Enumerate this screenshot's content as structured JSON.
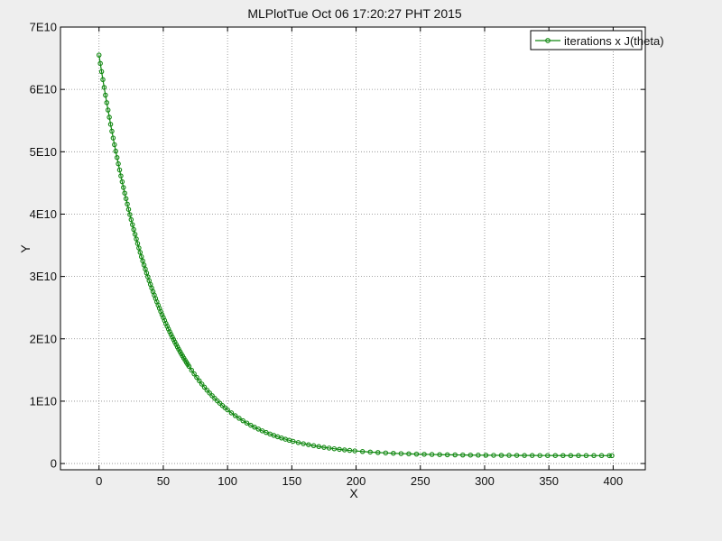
{
  "window": {
    "background": "#eeeeee"
  },
  "chart_data": {
    "type": "line",
    "title": "MLPlotTue Oct 06 17:20:27 PHT 2015",
    "xlabel": "X",
    "ylabel": "Y",
    "xlim": [
      -30,
      425
    ],
    "ylim": [
      -1000000000,
      70000000000
    ],
    "x_ticks": [
      0,
      50,
      100,
      150,
      200,
      250,
      300,
      350,
      400
    ],
    "x_tick_labels": [
      "0",
      "50",
      "100",
      "150",
      "200",
      "250",
      "300",
      "350",
      "400"
    ],
    "y_ticks": [
      0,
      10000000000,
      20000000000,
      30000000000,
      40000000000,
      50000000000,
      60000000000,
      70000000000
    ],
    "y_tick_labels": [
      "0",
      "1E10",
      "2E10",
      "3E10",
      "4E10",
      "5E10",
      "6E10",
      "7E10"
    ],
    "grid": true,
    "legend_position": "top-right",
    "series": [
      {
        "name": "iterations x J(theta)",
        "color": "#118811",
        "marker": "circle",
        "x": [
          0,
          1,
          2,
          3,
          4,
          5,
          6,
          7,
          8,
          9,
          10,
          11,
          12,
          13,
          14,
          15,
          16,
          17,
          18,
          19,
          20,
          21,
          22,
          23,
          24,
          25,
          26,
          27,
          28,
          29,
          30,
          31,
          32,
          33,
          34,
          35,
          36,
          37,
          38,
          39,
          40,
          41,
          42,
          43,
          44,
          45,
          46,
          47,
          48,
          49,
          50,
          51,
          52,
          53,
          54,
          55,
          56,
          57,
          58,
          59,
          60,
          61,
          62,
          63,
          64,
          65,
          66,
          67,
          68,
          69,
          70,
          72,
          74,
          76,
          78,
          80,
          82,
          84,
          86,
          88,
          90,
          92,
          94,
          96,
          98,
          100,
          103,
          106,
          109,
          112,
          115,
          118,
          121,
          124,
          127,
          130,
          133,
          136,
          139,
          142,
          145,
          148,
          151,
          155,
          159,
          163,
          167,
          171,
          175,
          179,
          183,
          187,
          191,
          195,
          199,
          205,
          211,
          217,
          223,
          229,
          235,
          241,
          247,
          253,
          259,
          265,
          271,
          277,
          283,
          289,
          295,
          301,
          307,
          313,
          319,
          325,
          331,
          337,
          343,
          349,
          355,
          361,
          367,
          373,
          379,
          385,
          391,
          397,
          399
        ],
        "y": [
          65500000000,
          64163000000,
          62853000000,
          61570000000,
          60313000000,
          59082000000,
          57876000000,
          56694000000,
          55537000000,
          54403000000,
          53292000000,
          52204000000,
          51138000000,
          50094000000,
          49071000000,
          48069000000,
          47088000000,
          46126000000,
          45185000000,
          44262000000,
          43359000000,
          42474000000,
          41607000000,
          40758000000,
          39926000000,
          39112000000,
          38314000000,
          37533000000,
          36768000000,
          36018000000,
          35284000000,
          34565000000,
          33861000000,
          33171000000,
          32496000000,
          31834000000,
          31186000000,
          30552000000,
          29930000000,
          29322000000,
          28726000000,
          28142000000,
          27571000000,
          27011000000,
          26463000000,
          25927000000,
          25402000000,
          24887000000,
          24383000000,
          23890000000,
          23407000000,
          22933000000,
          22470000000,
          22015000000,
          21571000000,
          21135000000,
          20708000000,
          20290000000,
          19881000000,
          19480000000,
          19088000000,
          18703000000,
          18327000000,
          17958000000,
          17597000000,
          17243000000,
          16897000000,
          16558000000,
          16226000000,
          15901000000,
          15582000000,
          14965000000,
          14374000000,
          13808000000,
          13265000000,
          12746000000,
          12248000000,
          11770000000,
          11313000000,
          10875000000,
          10455000000,
          10052000000,
          9667000000,
          9297000000,
          8943000000,
          8604000000,
          8123000000,
          7673000000,
          7253000000,
          6860000000,
          6492000000,
          6148000000,
          5826000000,
          5526000000,
          5245000000,
          4982000000,
          4736000000,
          4507000000,
          4292000000,
          4091000000,
          3903000000,
          3728000000,
          3564000000,
          3363000000,
          3181000000,
          3014000000,
          2862000000,
          2722000000,
          2594000000,
          2478000000,
          2371000000,
          2273000000,
          2183000000,
          2101000000,
          2026000000,
          1927000000,
          1841000000,
          1766000000,
          1700000000,
          1643000000,
          1593000000,
          1550000000,
          1512000000,
          1479000000,
          1450000000,
          1425000000,
          1404000000,
          1385000000,
          1368000000,
          1354000000,
          1341000000,
          1331000000,
          1321000000,
          1313000000,
          1306000000,
          1300000000,
          1294000000,
          1290000000,
          1286000000,
          1283000000,
          1280000000,
          1277000000,
          1275000000,
          1273000000,
          1271000000,
          1270000000,
          1269000000,
          1268000000,
          1268000000
        ]
      }
    ]
  }
}
